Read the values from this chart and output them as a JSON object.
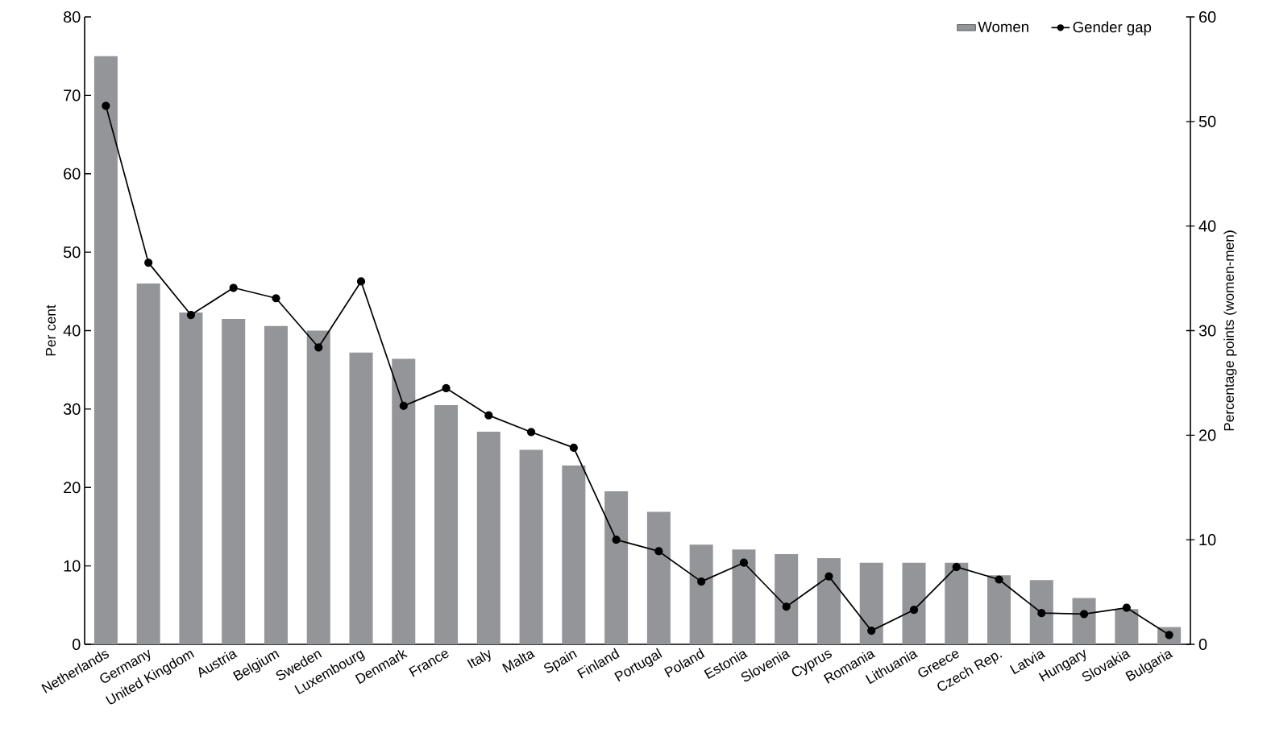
{
  "chart_data": {
    "type": "bar",
    "ylabel": "Per cent",
    "y2label": "Percentage points (women-men)",
    "categories": [
      "Netherlands",
      "Germany",
      "United Kingdom",
      "Austria",
      "Belgium",
      "Sweden",
      "Luxembourg",
      "Denmark",
      "France",
      "Italy",
      "Malta",
      "Spain",
      "Finland",
      "Portugal",
      "Poland",
      "Estonia",
      "Slovenia",
      "Cyprus",
      "Romania",
      "Lithuania",
      "Greece",
      "Czech Rep.",
      "Latvia",
      "Hungary",
      "Slovakia",
      "Bulgaria"
    ],
    "series": [
      {
        "name": "Women",
        "color": "#939598",
        "values": [
          75.0,
          46.0,
          42.3,
          41.5,
          40.6,
          40.0,
          37.2,
          36.4,
          30.5,
          27.1,
          24.8,
          22.8,
          19.5,
          16.9,
          12.7,
          12.1,
          11.5,
          11.0,
          10.4,
          10.4,
          10.4,
          8.8,
          8.2,
          5.9,
          4.5,
          2.2
        ]
      },
      {
        "name": "Gender gap",
        "type": "line",
        "axis": "y2",
        "color": "#000000",
        "values": [
          51.5,
          36.5,
          31.5,
          34.1,
          33.1,
          28.4,
          34.7,
          22.8,
          24.5,
          21.9,
          20.3,
          18.8,
          10.0,
          8.9,
          6.0,
          7.8,
          3.6,
          6.5,
          1.3,
          3.3,
          7.4,
          6.2,
          3.0,
          2.9,
          3.5,
          0.9
        ]
      }
    ],
    "ylim": [
      0,
      80
    ],
    "yticks": [
      0,
      10,
      20,
      30,
      40,
      50,
      60,
      70,
      80
    ],
    "y2lim": [
      0,
      60
    ],
    "y2ticks": [
      0,
      10,
      20,
      30,
      40,
      50,
      60
    ],
    "legend": "top right",
    "marker": "circle",
    "line_style": "solid",
    "grid": false
  }
}
